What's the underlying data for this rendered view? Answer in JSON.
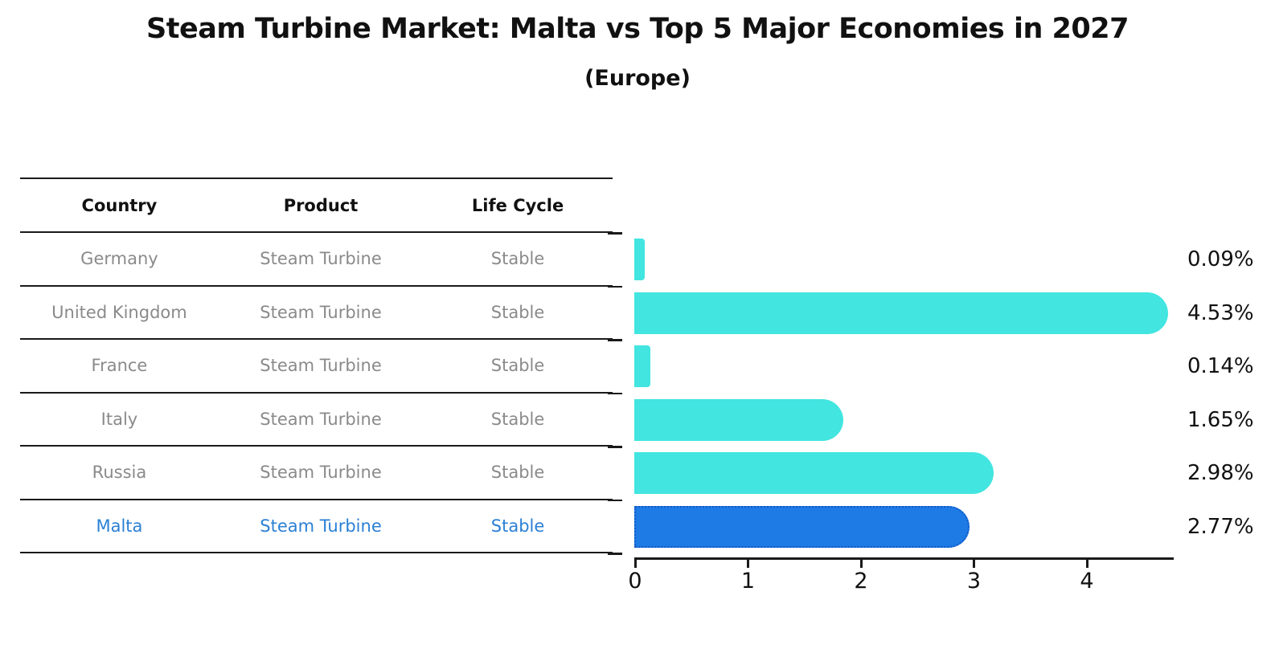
{
  "title": "Steam Turbine Market: Malta vs Top 5 Major Economies in 2027",
  "subtitle": "(Europe)",
  "table": {
    "headers": [
      "Country",
      "Product",
      "Life Cycle"
    ],
    "rows": [
      {
        "country": "Germany",
        "product": "Steam Turbine",
        "life_cycle": "Stable",
        "highlighted": false
      },
      {
        "country": "United Kingdom",
        "product": "Steam Turbine",
        "life_cycle": "Stable",
        "highlighted": false
      },
      {
        "country": "France",
        "product": "Steam Turbine",
        "life_cycle": "Stable",
        "highlighted": false
      },
      {
        "country": "Italy",
        "product": "Steam Turbine",
        "life_cycle": "Stable",
        "highlighted": false
      },
      {
        "country": "Russia",
        "product": "Steam Turbine",
        "life_cycle": "Stable",
        "highlighted": false
      },
      {
        "country": "Malta",
        "product": "Steam Turbine",
        "life_cycle": "Stable",
        "highlighted": true
      }
    ]
  },
  "chart_data": {
    "type": "bar",
    "orientation": "horizontal",
    "title": "Steam Turbine Market: Malta vs Top 5 Major Economies in 2027",
    "subtitle": "(Europe)",
    "categories": [
      "Germany",
      "United Kingdom",
      "France",
      "Italy",
      "Russia",
      "Malta"
    ],
    "values": [
      0.09,
      4.53,
      0.14,
      1.65,
      2.98,
      2.77
    ],
    "value_labels": [
      "0.09%",
      "4.53%",
      "0.14%",
      "1.65%",
      "2.98%",
      "2.77%"
    ],
    "x_ticks": [
      "0",
      "1",
      "2",
      "3",
      "4"
    ],
    "xlim": [
      0,
      4.8
    ],
    "grid": false,
    "legend": "none",
    "highlight_index": 5,
    "colors": {
      "bar": "#42e5e0",
      "highlight_bar": "#1e7be6",
      "highlight_border": "#1458c4",
      "highlight_text": "#2b80d5",
      "table_text": "#8a8a8a",
      "header_text": "#111111",
      "axis": "#1a1a1a",
      "value_label": "#111111"
    }
  }
}
